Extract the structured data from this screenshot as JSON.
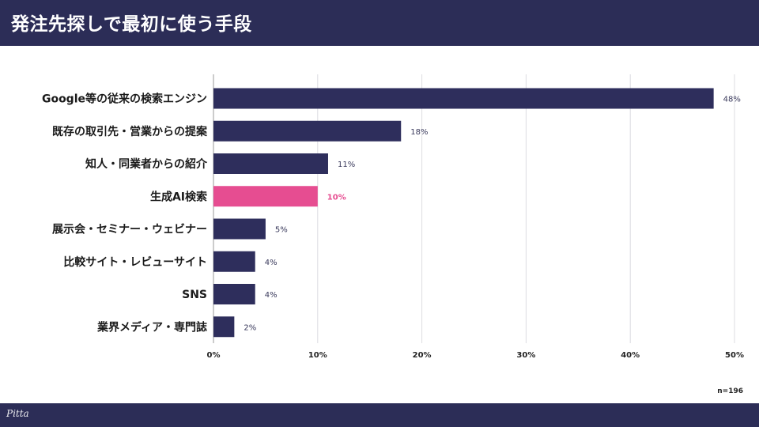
{
  "header": {
    "title": "発注先探しで最初に使う手段"
  },
  "footer": {
    "logo": "Pitta"
  },
  "sample_size": "n=196",
  "chart_data": {
    "type": "bar",
    "orientation": "horizontal",
    "categories": [
      "Google等の従来の検索エンジン",
      "既存の取引先・営業からの提案",
      "知人・同業者からの紹介",
      "生成AI検索",
      "展示会・セミナー・ウェビナー",
      "比較サイト・レビューサイト",
      "SNS",
      "業界メディア・専門誌"
    ],
    "values": [
      48,
      18,
      11,
      10,
      5,
      4,
      4,
      2
    ],
    "value_labels": [
      "48%",
      "18%",
      "11%",
      "10%",
      "5%",
      "4%",
      "4%",
      "2%"
    ],
    "highlight_index": 3,
    "xlim": [
      0,
      50
    ],
    "xticks": [
      0,
      10,
      20,
      30,
      40,
      50
    ],
    "xtick_labels": [
      "0%",
      "10%",
      "20%",
      "30%",
      "40%",
      "50%"
    ],
    "grid": true,
    "colors": {
      "bar": "#2e2e5c",
      "highlight": "#e64d91",
      "label": "#3a3a5c",
      "grid": "#dcdce2"
    }
  }
}
